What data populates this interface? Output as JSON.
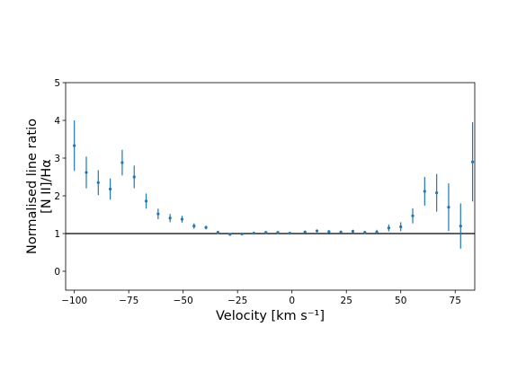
{
  "chart_data": {
    "type": "scatter",
    "title": "",
    "xlabel": "Velocity [km s⁻¹]",
    "ylabel_lines": [
      "Normalised line ratio",
      "[N II]/Hα"
    ],
    "xlim": [
      -104,
      84
    ],
    "ylim": [
      -0.5,
      5
    ],
    "xticks": [
      -100,
      -75,
      -50,
      -25,
      0,
      25,
      50,
      75
    ],
    "xtick_labels": [
      "−100",
      "−75",
      "−50",
      "−25",
      "0",
      "25",
      "50",
      "75"
    ],
    "yticks": [
      0,
      1,
      2,
      3,
      4,
      5
    ],
    "ytick_labels": [
      "0",
      "1",
      "2",
      "3",
      "4",
      "5"
    ],
    "reference_line": 1,
    "grid": false,
    "colors": {
      "series": "#1f77b4",
      "reference": "#000000",
      "axes": "#000000"
    },
    "series": [
      {
        "points": [
          {
            "x": -100,
            "y": 3.33,
            "err": 0.67
          },
          {
            "x": -94.5,
            "y": 2.62,
            "err": 0.42
          },
          {
            "x": -89,
            "y": 2.35,
            "err": 0.33
          },
          {
            "x": -83.5,
            "y": 2.18,
            "err": 0.28
          },
          {
            "x": -78,
            "y": 2.88,
            "err": 0.34
          },
          {
            "x": -72.5,
            "y": 2.5,
            "err": 0.3
          },
          {
            "x": -67,
            "y": 1.86,
            "err": 0.2
          },
          {
            "x": -61.5,
            "y": 1.52,
            "err": 0.14
          },
          {
            "x": -56,
            "y": 1.41,
            "err": 0.11
          },
          {
            "x": -50.5,
            "y": 1.38,
            "err": 0.09
          },
          {
            "x": -45,
            "y": 1.2,
            "err": 0.07
          },
          {
            "x": -39.5,
            "y": 1.16,
            "err": 0.05
          },
          {
            "x": -34,
            "y": 1.03,
            "err": 0.04
          },
          {
            "x": -28.5,
            "y": 0.98,
            "err": 0.03
          },
          {
            "x": -23,
            "y": 0.99,
            "err": 0.03
          },
          {
            "x": -17.5,
            "y": 1.01,
            "err": 0.03
          },
          {
            "x": -12,
            "y": 1.03,
            "err": 0.03
          },
          {
            "x": -6.5,
            "y": 1.03,
            "err": 0.03
          },
          {
            "x": -1,
            "y": 1.01,
            "err": 0.03
          },
          {
            "x": 6,
            "y": 1.04,
            "err": 0.04
          },
          {
            "x": 11.5,
            "y": 1.07,
            "err": 0.04
          },
          {
            "x": 17,
            "y": 1.05,
            "err": 0.04
          },
          {
            "x": 22.5,
            "y": 1.04,
            "err": 0.04
          },
          {
            "x": 28,
            "y": 1.06,
            "err": 0.04
          },
          {
            "x": 33.5,
            "y": 1.03,
            "err": 0.04
          },
          {
            "x": 39,
            "y": 1.04,
            "err": 0.06
          },
          {
            "x": 44.5,
            "y": 1.15,
            "err": 0.09
          },
          {
            "x": 50,
            "y": 1.18,
            "err": 0.12
          },
          {
            "x": 55.5,
            "y": 1.47,
            "err": 0.2
          },
          {
            "x": 61,
            "y": 2.12,
            "err": 0.38
          },
          {
            "x": 66.5,
            "y": 2.08,
            "err": 0.5
          },
          {
            "x": 72,
            "y": 1.7,
            "err": 0.63
          },
          {
            "x": 77.5,
            "y": 1.2,
            "err": 0.6
          },
          {
            "x": 83,
            "y": 2.9,
            "err": 1.05
          }
        ]
      }
    ]
  }
}
